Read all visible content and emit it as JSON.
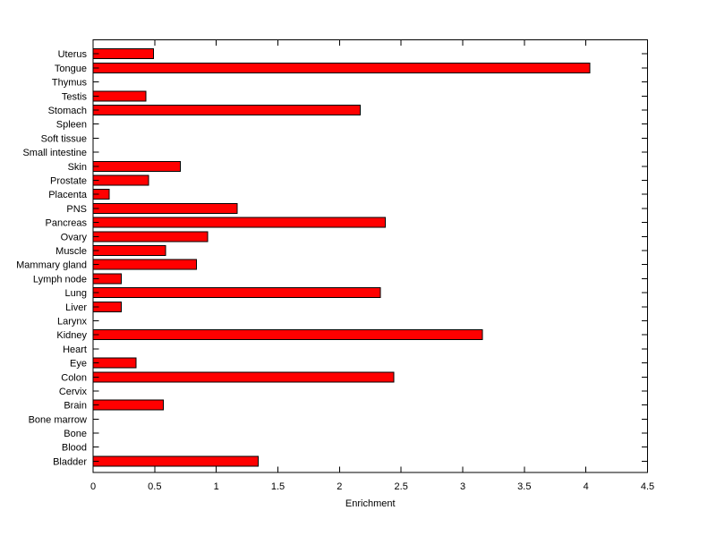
{
  "chart_data": {
    "type": "bar",
    "orientation": "horizontal",
    "title": "",
    "xlabel": "Enrichment",
    "ylabel": "",
    "categories": [
      "Uterus",
      "Tongue",
      "Thymus",
      "Testis",
      "Stomach",
      "Spleen",
      "Soft tissue",
      "Small intestine",
      "Skin",
      "Prostate",
      "Placenta",
      "PNS",
      "Pancreas",
      "Ovary",
      "Muscle",
      "Mammary gland",
      "Lymph node",
      "Lung",
      "Liver",
      "Larynx",
      "Kidney",
      "Heart",
      "Eye",
      "Colon",
      "Cervix",
      "Brain",
      "Bone marrow",
      "Bone",
      "Blood",
      "Bladder"
    ],
    "values": [
      0.49,
      4.03,
      0,
      0.43,
      2.17,
      0,
      0,
      0,
      0.71,
      0.45,
      0.13,
      1.17,
      2.37,
      0.93,
      0.59,
      0.84,
      0.23,
      2.33,
      0.23,
      0,
      3.16,
      0,
      0.35,
      2.44,
      0,
      0.57,
      0,
      0,
      0,
      1.34
    ],
    "xlim": [
      0,
      4.5
    ],
    "xtick_values": [
      0,
      0.5,
      1,
      1.5,
      2,
      2.5,
      3,
      3.5,
      4,
      4.5
    ],
    "xtick_labels": [
      "0",
      "0.5",
      "1",
      "1.5",
      "2",
      "2.5",
      "3",
      "3.5",
      "4",
      "4.5"
    ],
    "grid": false,
    "legend": null,
    "bar_color": "#ff0000",
    "bar_edge_color": "#000000",
    "axis_color": "#000000",
    "text_color": "#000000",
    "background_color": "#ffffff"
  }
}
